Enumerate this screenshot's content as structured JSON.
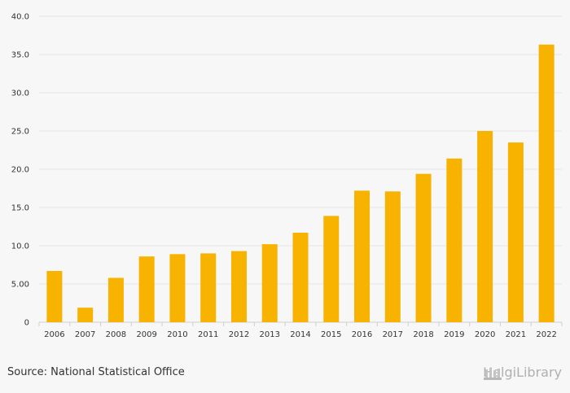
{
  "chart_data": {
    "type": "bar",
    "categories": [
      "2006",
      "2007",
      "2008",
      "2009",
      "2010",
      "2011",
      "2012",
      "2013",
      "2014",
      "2015",
      "2016",
      "2017",
      "2018",
      "2019",
      "2020",
      "2021",
      "2022"
    ],
    "values": [
      6.7,
      1.9,
      5.8,
      8.6,
      8.9,
      9.0,
      9.3,
      10.2,
      11.7,
      13.9,
      17.2,
      17.1,
      19.4,
      21.4,
      25.0,
      23.5,
      36.3
    ],
    "ylim": [
      0,
      40
    ],
    "yticks": [
      "0",
      "5.00",
      "10.0",
      "15.0",
      "20.0",
      "25.0",
      "30.0",
      "35.0",
      "40.0"
    ],
    "grid": true,
    "bar_color": "#f7b300"
  },
  "footer": {
    "source": "Source: National Statistical Office",
    "brand": "HelgiLibrary"
  }
}
